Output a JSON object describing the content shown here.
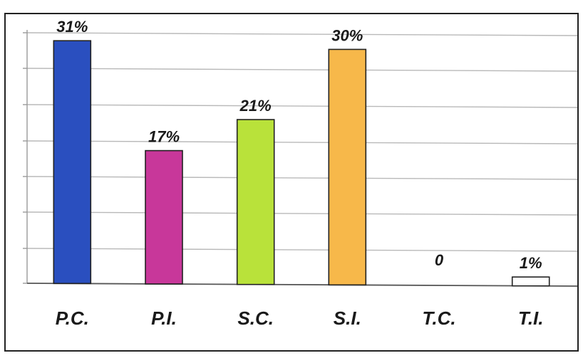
{
  "chart_data": {
    "type": "bar",
    "categories": [
      "P.C.",
      "P.I.",
      "S.C.",
      "S.I.",
      "T.C.",
      "T.I."
    ],
    "values": [
      31,
      17,
      21,
      30,
      0,
      1
    ],
    "data_labels": [
      "31%",
      "17%",
      "21%",
      "30%",
      "0",
      "1%"
    ],
    "colors": [
      "#2a4fbf",
      "#c8379a",
      "#b9e23a",
      "#f7b84a",
      "#ffffff",
      "#ffffff"
    ],
    "ylim": [
      0,
      32
    ],
    "grid": true,
    "legend": "none"
  }
}
